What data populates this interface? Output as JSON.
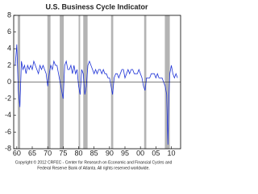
{
  "chart_data": {
    "type": "line",
    "title": "U.S. Business Cycle Indicator",
    "footer": [
      "Copyright © 2012 CRFEC - Center for Research on Economic and Financial Cycles and",
      "Federal Reserve Bank of Atlanta. All rights reserved worldwide."
    ],
    "x": [
      1959.5,
      1960,
      1960.5,
      1961,
      1961.5,
      1962,
      1962.5,
      1963,
      1963.5,
      1964,
      1964.5,
      1965,
      1965.5,
      1966,
      1966.5,
      1967,
      1967.5,
      1968,
      1968.5,
      1969,
      1969.5,
      1970,
      1970.5,
      1971,
      1971.5,
      1972,
      1972.5,
      1973,
      1973.5,
      1974,
      1974.5,
      1975,
      1975.5,
      1976,
      1976.5,
      1977,
      1977.5,
      1978,
      1978.5,
      1979,
      1979.5,
      1980,
      1980.5,
      1981,
      1981.5,
      1982,
      1982.5,
      1983,
      1983.5,
      1984,
      1984.5,
      1985,
      1985.5,
      1986,
      1986.5,
      1987,
      1987.5,
      1988,
      1988.5,
      1989,
      1989.5,
      1990,
      1990.5,
      1991,
      1991.5,
      1992,
      1992.5,
      1993,
      1993.5,
      1994,
      1994.5,
      1995,
      1995.5,
      1996,
      1996.5,
      1997,
      1997.5,
      1998,
      1998.5,
      1999,
      1999.5,
      2000,
      2000.5,
      2001,
      2001.5,
      2002,
      2002.5,
      2003,
      2003.5,
      2004,
      2004.5,
      2005,
      2005.5,
      2006,
      2006.5,
      2007,
      2007.5,
      2008,
      2008.5,
      2008.9,
      2009.2,
      2009.5,
      2010,
      2010.5,
      2011,
      2011.5,
      2012
    ],
    "series": [
      {
        "color": "#1f33d6",
        "values": [
          2,
          4.5,
          -1,
          -3,
          2.5,
          1.5,
          2,
          1,
          2,
          1.5,
          2,
          1.5,
          2.5,
          2,
          1.5,
          1,
          2,
          1.5,
          2,
          1.5,
          1,
          -0.5,
          1,
          2,
          1.5,
          2.5,
          2,
          2,
          1,
          0,
          -1,
          -2,
          2,
          2.5,
          1.5,
          1.5,
          2,
          1,
          2,
          1,
          1.5,
          -0.5,
          -1.5,
          1.5,
          1,
          -1.5,
          -0.5,
          2,
          2.5,
          2,
          1.5,
          1,
          1.5,
          1,
          1.5,
          1.5,
          1,
          1.5,
          1,
          1,
          0.5,
          0.5,
          -0.5,
          -1.5,
          0.5,
          1,
          1,
          0.5,
          1,
          1.5,
          1.5,
          0.5,
          1,
          1.5,
          1,
          1.5,
          1.5,
          1,
          1,
          1,
          1.5,
          1,
          0.5,
          -0.5,
          -1,
          0.5,
          0.5,
          0.5,
          1,
          1,
          1,
          0.5,
          1,
          0.5,
          0.5,
          0.5,
          0,
          -0.5,
          -1.5,
          -7.5,
          -2,
          1,
          2,
          1,
          0.5,
          1,
          0.5
        ]
      }
    ],
    "recessions": [
      [
        1960.3,
        1961.1
      ],
      [
        1969.9,
        1970.9
      ],
      [
        1973.9,
        1975.2
      ],
      [
        1980.0,
        1980.5
      ],
      [
        1981.5,
        1982.9
      ],
      [
        1990.5,
        1991.2
      ],
      [
        2001.2,
        2001.9
      ],
      [
        2007.9,
        2009.5
      ]
    ],
    "recession_color": "#b4b4b4",
    "xlim": [
      1959,
      2013
    ],
    "xticks": [
      {
        "value": 1960,
        "label": "60"
      },
      {
        "value": 1965,
        "label": "65"
      },
      {
        "value": 1970,
        "label": "70"
      },
      {
        "value": 1975,
        "label": "75"
      },
      {
        "value": 1980,
        "label": "80"
      },
      {
        "value": 1985,
        "label": "85"
      },
      {
        "value": 1990,
        "label": "90"
      },
      {
        "value": 1995,
        "label": "95"
      },
      {
        "value": 2000,
        "label": "00"
      },
      {
        "value": 2005,
        "label": "05"
      },
      {
        "value": 2010,
        "label": "10"
      }
    ],
    "ylim": [
      -8,
      8
    ],
    "yticks": [
      -8,
      -6,
      -4,
      -2,
      0,
      2,
      4,
      6,
      8
    ]
  }
}
